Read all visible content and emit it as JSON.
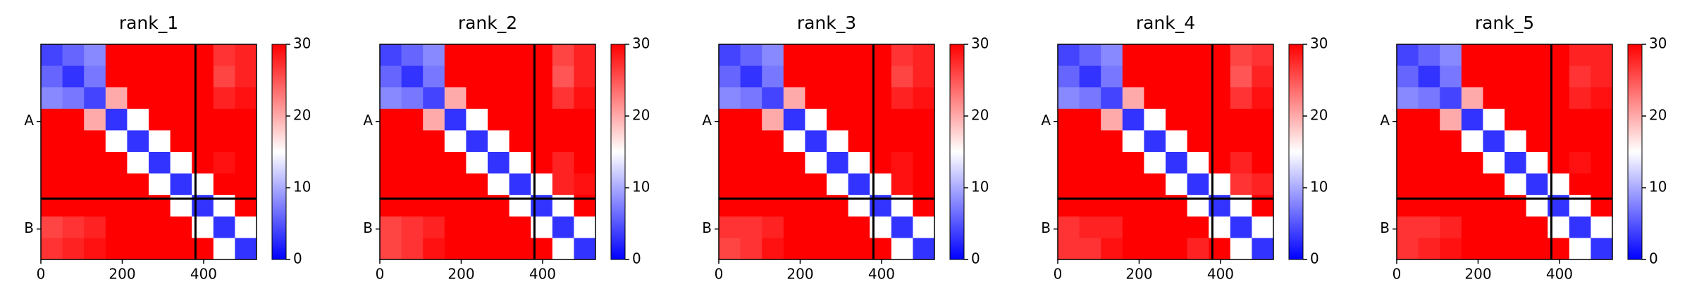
{
  "chart_data": [
    {
      "type": "heatmap",
      "title": "rank_1",
      "colormap": "bwr",
      "xlim": [
        0,
        530
      ],
      "ylim": [
        0,
        530
      ],
      "y_inverted": true,
      "xticks": [
        0,
        200,
        400
      ],
      "yticks": [
        {
          "value": 190,
          "label": "A"
        },
        {
          "value": 455,
          "label": "B"
        }
      ],
      "clim": [
        0,
        30
      ],
      "cticks": [
        0,
        10,
        20,
        30
      ],
      "chain_breaks": [
        380
      ],
      "z": [
        [
          4,
          6,
          8,
          30,
          30,
          30,
          30,
          30,
          27,
          28
        ],
        [
          6,
          3,
          7,
          30,
          30,
          30,
          30,
          30,
          26,
          28
        ],
        [
          8,
          7,
          4,
          20,
          30,
          30,
          30,
          30,
          28,
          29
        ],
        [
          30,
          30,
          20,
          3,
          15,
          30,
          30,
          30,
          30,
          30
        ],
        [
          30,
          30,
          30,
          15,
          3,
          15,
          30,
          30,
          30,
          30
        ],
        [
          30,
          30,
          30,
          30,
          15,
          3,
          15,
          30,
          29,
          30
        ],
        [
          30,
          30,
          30,
          30,
          30,
          15,
          3,
          15,
          30,
          30
        ],
        [
          30,
          30,
          30,
          30,
          30,
          30,
          15,
          3,
          15,
          30
        ],
        [
          26,
          27,
          28,
          30,
          30,
          30,
          30,
          15,
          3,
          15
        ],
        [
          27,
          28,
          29,
          30,
          30,
          30,
          30,
          30,
          15,
          3
        ]
      ]
    },
    {
      "type": "heatmap",
      "title": "rank_2",
      "colormap": "bwr",
      "xlim": [
        0,
        530
      ],
      "ylim": [
        0,
        530
      ],
      "y_inverted": true,
      "xticks": [
        0,
        200,
        400
      ],
      "yticks": [
        {
          "value": 190,
          "label": "A"
        },
        {
          "value": 455,
          "label": "B"
        }
      ],
      "clim": [
        0,
        30
      ],
      "cticks": [
        0,
        10,
        20,
        30
      ],
      "chain_breaks": [
        380
      ],
      "z": [
        [
          4,
          6,
          8,
          30,
          30,
          30,
          30,
          30,
          26,
          28
        ],
        [
          6,
          3,
          7,
          30,
          30,
          30,
          30,
          30,
          25,
          28
        ],
        [
          8,
          7,
          4,
          20,
          30,
          30,
          30,
          30,
          27,
          29
        ],
        [
          30,
          30,
          20,
          3,
          15,
          30,
          30,
          30,
          30,
          30
        ],
        [
          30,
          30,
          30,
          15,
          3,
          15,
          30,
          30,
          30,
          30
        ],
        [
          30,
          30,
          30,
          30,
          15,
          3,
          15,
          30,
          28,
          30
        ],
        [
          30,
          30,
          30,
          30,
          30,
          15,
          3,
          15,
          28,
          29
        ],
        [
          30,
          30,
          30,
          30,
          30,
          30,
          15,
          3,
          15,
          30
        ],
        [
          26,
          27,
          28,
          30,
          30,
          30,
          30,
          15,
          3,
          15
        ],
        [
          26,
          27,
          29,
          30,
          30,
          30,
          30,
          30,
          15,
          3
        ]
      ]
    },
    {
      "type": "heatmap",
      "title": "rank_3",
      "colormap": "bwr",
      "xlim": [
        0,
        530
      ],
      "ylim": [
        0,
        530
      ],
      "y_inverted": true,
      "xticks": [
        0,
        200,
        400
      ],
      "yticks": [
        {
          "value": 190,
          "label": "A"
        },
        {
          "value": 455,
          "label": "B"
        }
      ],
      "clim": [
        0,
        30
      ],
      "cticks": [
        0,
        10,
        20,
        30
      ],
      "chain_breaks": [
        380
      ],
      "z": [
        [
          4,
          6,
          8,
          30,
          30,
          30,
          30,
          30,
          27,
          28
        ],
        [
          6,
          3,
          7,
          30,
          30,
          30,
          30,
          30,
          26,
          28
        ],
        [
          8,
          7,
          4,
          20,
          30,
          30,
          30,
          30,
          28,
          29
        ],
        [
          30,
          30,
          20,
          3,
          15,
          30,
          30,
          30,
          30,
          30
        ],
        [
          30,
          30,
          30,
          15,
          3,
          15,
          30,
          30,
          30,
          30
        ],
        [
          30,
          30,
          30,
          30,
          15,
          3,
          15,
          30,
          29,
          30
        ],
        [
          30,
          30,
          30,
          30,
          30,
          15,
          3,
          15,
          29,
          30
        ],
        [
          30,
          30,
          30,
          30,
          30,
          30,
          15,
          3,
          15,
          30
        ],
        [
          27,
          27,
          28,
          30,
          30,
          30,
          30,
          15,
          3,
          15
        ],
        [
          26,
          27,
          29,
          30,
          30,
          30,
          30,
          30,
          15,
          3
        ]
      ]
    },
    {
      "type": "heatmap",
      "title": "rank_4",
      "colormap": "bwr",
      "xlim": [
        0,
        530
      ],
      "ylim": [
        0,
        530
      ],
      "y_inverted": true,
      "xticks": [
        0,
        200,
        400
      ],
      "yticks": [
        {
          "value": 190,
          "label": "A"
        },
        {
          "value": 455,
          "label": "B"
        }
      ],
      "clim": [
        0,
        30
      ],
      "cticks": [
        0,
        10,
        20,
        30
      ],
      "chain_breaks": [
        380
      ],
      "z": [
        [
          4,
          6,
          8,
          30,
          30,
          30,
          30,
          30,
          26,
          27
        ],
        [
          6,
          3,
          7,
          30,
          30,
          30,
          30,
          30,
          25,
          28
        ],
        [
          8,
          7,
          4,
          20,
          30,
          30,
          30,
          30,
          27,
          29
        ],
        [
          30,
          30,
          20,
          3,
          15,
          30,
          30,
          30,
          30,
          30
        ],
        [
          30,
          30,
          30,
          15,
          3,
          15,
          30,
          30,
          30,
          30
        ],
        [
          30,
          30,
          30,
          30,
          15,
          3,
          15,
          30,
          28,
          30
        ],
        [
          30,
          30,
          30,
          30,
          30,
          15,
          3,
          15,
          27,
          28
        ],
        [
          30,
          30,
          30,
          30,
          30,
          30,
          15,
          3,
          15,
          30
        ],
        [
          27,
          28,
          28,
          30,
          30,
          30,
          30,
          15,
          3,
          15
        ],
        [
          27,
          27,
          29,
          30,
          30,
          30,
          28,
          30,
          15,
          3
        ]
      ]
    },
    {
      "type": "heatmap",
      "title": "rank_5",
      "colormap": "bwr",
      "xlim": [
        0,
        530
      ],
      "ylim": [
        0,
        530
      ],
      "y_inverted": true,
      "xticks": [
        0,
        200,
        400
      ],
      "yticks": [
        {
          "value": 190,
          "label": "A"
        },
        {
          "value": 455,
          "label": "B"
        }
      ],
      "clim": [
        0,
        30
      ],
      "cticks": [
        0,
        10,
        20,
        30
      ],
      "chain_breaks": [
        380
      ],
      "z": [
        [
          4,
          6,
          8,
          30,
          30,
          30,
          30,
          30,
          28,
          28
        ],
        [
          6,
          3,
          7,
          30,
          30,
          30,
          30,
          30,
          27,
          28
        ],
        [
          8,
          7,
          4,
          20,
          30,
          30,
          30,
          30,
          28,
          29
        ],
        [
          30,
          30,
          20,
          3,
          15,
          30,
          30,
          30,
          30,
          30
        ],
        [
          30,
          30,
          30,
          15,
          3,
          15,
          30,
          30,
          30,
          30
        ],
        [
          30,
          30,
          30,
          30,
          15,
          3,
          15,
          30,
          29,
          30
        ],
        [
          30,
          30,
          30,
          30,
          30,
          15,
          3,
          15,
          30,
          30
        ],
        [
          30,
          30,
          30,
          30,
          30,
          30,
          15,
          3,
          15,
          30
        ],
        [
          27,
          27,
          28,
          30,
          30,
          30,
          30,
          15,
          3,
          15
        ],
        [
          27,
          28,
          29,
          30,
          30,
          30,
          30,
          30,
          15,
          3
        ]
      ]
    }
  ]
}
